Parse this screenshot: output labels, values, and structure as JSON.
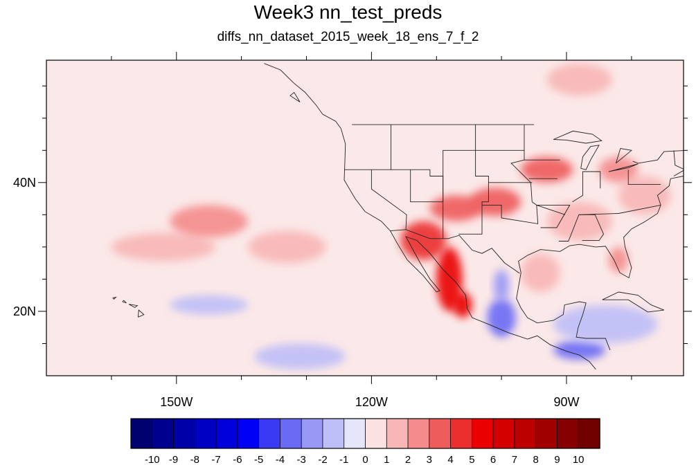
{
  "title": "Week3 nn_test_preds",
  "subtitle": "diffs_nn_dataset_2015_week_18_ens_7_f_2",
  "map": {
    "lon_range": [
      -170,
      -72
    ],
    "lat_range": [
      10,
      59
    ],
    "x_ticks": [
      {
        "lon": -150,
        "label": "150W"
      },
      {
        "lon": -120,
        "label": "120W"
      },
      {
        "lon": -90,
        "label": "90W"
      }
    ],
    "y_ticks": [
      {
        "lat": 20,
        "label": "20N"
      },
      {
        "lat": 40,
        "label": "40N"
      }
    ],
    "minor_x": [
      -160,
      -140,
      -130,
      -110,
      -100,
      -80
    ],
    "minor_y": [
      15,
      25,
      30,
      35,
      45,
      50,
      55
    ]
  },
  "colorbar": {
    "labels": [
      "-10",
      "-9",
      "-8",
      "-7",
      "-6",
      "-5",
      "-4",
      "-3",
      "-2",
      "-1",
      "0",
      "1",
      "2",
      "3",
      "4",
      "5",
      "6",
      "7",
      "8",
      "9",
      "10"
    ],
    "colors": [
      "#00006e",
      "#00008f",
      "#0000a8",
      "#0000c2",
      "#0000dc",
      "#0000f5",
      "#3a3af5",
      "#6a6af5",
      "#9898f5",
      "#bebef8",
      "#e6e6fa",
      "#fbe2e2",
      "#f8b6b6",
      "#f48c8c",
      "#ee5c5c",
      "#eb2f2f",
      "#ea0000",
      "#d40000",
      "#bc0000",
      "#a00000",
      "#860000",
      "#700000"
    ]
  },
  "anomaly_blobs": [
    {
      "lon": -112,
      "lat": 31,
      "rx": 3.5,
      "ry": 3,
      "level": 4
    },
    {
      "lon": -108,
      "lat": 25,
      "rx": 2,
      "ry": 5,
      "level": 5
    },
    {
      "lon": -106,
      "lat": 21,
      "rx": 1.5,
      "ry": 2,
      "level": 5
    },
    {
      "lon": -101,
      "lat": 37,
      "rx": 4,
      "ry": 2.2,
      "level": 3
    },
    {
      "lon": -107,
      "lat": 36,
      "rx": 4,
      "ry": 2,
      "level": 3
    },
    {
      "lon": -93,
      "lat": 42,
      "rx": 4,
      "ry": 2,
      "level": 3
    },
    {
      "lon": -100,
      "lat": 19,
      "rx": 2.2,
      "ry": 3,
      "level": -4
    },
    {
      "lon": -88,
      "lat": 14,
      "rx": 4,
      "ry": 1.5,
      "level": -4
    },
    {
      "lon": -100,
      "lat": 24,
      "rx": 1.2,
      "ry": 2.5,
      "level": -3
    },
    {
      "lon": -84,
      "lat": 18,
      "rx": 8,
      "ry": 3,
      "level": -2
    },
    {
      "lon": -145,
      "lat": 21,
      "rx": 6,
      "ry": 1.5,
      "level": -2
    },
    {
      "lon": -131,
      "lat": 13,
      "rx": 7,
      "ry": 2,
      "level": -2
    },
    {
      "lon": -152,
      "lat": 30,
      "rx": 8,
      "ry": 2.2,
      "level": 1
    },
    {
      "lon": -145,
      "lat": 34,
      "rx": 6,
      "ry": 2.5,
      "level": 2
    },
    {
      "lon": -133,
      "lat": 30,
      "rx": 6,
      "ry": 2.5,
      "level": 1
    },
    {
      "lon": -78,
      "lat": 38,
      "rx": 4,
      "ry": 3,
      "level": 1
    },
    {
      "lon": -88,
      "lat": 34,
      "rx": 5,
      "ry": 3,
      "level": 1
    },
    {
      "lon": -82,
      "lat": 28,
      "rx": 1.5,
      "ry": 2,
      "level": 2
    },
    {
      "lon": -94,
      "lat": 26,
      "rx": 3,
      "ry": 3,
      "level": 1
    },
    {
      "lon": -88,
      "lat": 56,
      "rx": 5,
      "ry": 2.5,
      "level": 1
    },
    {
      "lon": -82,
      "lat": 42,
      "rx": 3,
      "ry": 2,
      "level": 2
    }
  ]
}
